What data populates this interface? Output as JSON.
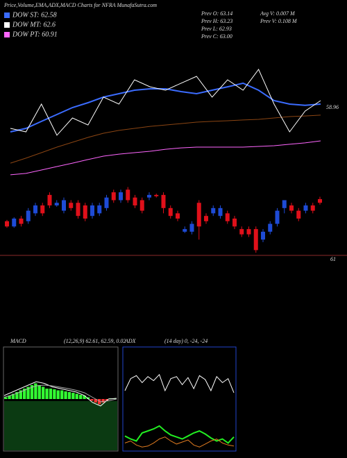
{
  "header": {
    "title": "Price,Volume,EMA,ADX,MACD Charts for NFRA MunafaSutra.com",
    "legend": [
      {
        "label": "DOW ST: 62.58",
        "color": "#3b6cff"
      },
      {
        "label": "DOW MT: 62.6",
        "color": "#ffffff"
      },
      {
        "label": "DOW PT: 60.91",
        "color": "#ff66ff"
      }
    ],
    "stats": [
      "Prev  O: 63.14",
      "Avg V: 0.007 M",
      "Prev  H: 63.23",
      "Prev  V: 0.108 M",
      "Prev  L: 62.93",
      "Prev  C: 63.00"
    ]
  },
  "chart_data": [
    {
      "type": "overlay",
      "ylim": [
        53,
        62
      ],
      "price_label": "58.96",
      "series": [
        {
          "color": "#8b4513",
          "values": [
            54.36,
            54.75,
            55.18,
            55.62,
            56.0,
            56.38,
            56.71,
            56.93,
            57.09,
            57.25,
            57.36,
            57.47,
            57.58,
            57.64,
            57.69,
            57.75,
            57.8,
            57.91,
            58.02,
            58.07,
            58.13
          ]
        },
        {
          "color": "#ff66ff",
          "values": [
            53.44,
            53.55,
            53.82,
            54.09,
            54.36,
            54.64,
            54.91,
            55.07,
            55.18,
            55.29,
            55.45,
            55.56,
            55.62,
            55.62,
            55.62,
            55.62,
            55.67,
            55.73,
            55.84,
            55.95,
            56.11
          ]
        },
        {
          "color": "#3b6cff",
          "values": [
            56.82,
            57.09,
            57.64,
            58.18,
            58.73,
            59.11,
            59.55,
            59.82,
            60.09,
            60.2,
            60.2,
            59.98,
            59.82,
            60.09,
            60.36,
            60.64,
            60.09,
            59.27,
            59.0,
            58.91,
            59.0
          ]
        },
        {
          "color": "#ffffff",
          "values": [
            57.09,
            56.82,
            59.0,
            56.55,
            57.91,
            57.36,
            59.55,
            59.0,
            60.91,
            60.36,
            60.09,
            60.64,
            61.18,
            59.55,
            60.91,
            60.09,
            61.73,
            59.0,
            56.82,
            58.45,
            59.27
          ]
        }
      ]
    },
    {
      "type": "candlestick",
      "ylim": [
        61,
        64.3
      ],
      "axis_label": "61",
      "up_color": "#1e4bd6",
      "down_color": "#e0101a",
      "open": [
        62.3,
        62.1,
        62.4,
        62.3,
        62.6,
        62.9,
        63.3,
        62.9,
        62.7,
        63.0,
        63.0,
        62.9,
        62.5,
        62.6,
        62.8,
        63.4,
        63.1,
        63.5,
        63.2,
        63.1,
        63.2,
        63.3,
        63.3,
        62.8,
        62.6,
        61.9,
        61.9,
        63.0,
        62.5,
        62.6,
        62.5,
        62.6,
        62.4,
        62.0,
        62.0,
        62.0,
        61.6,
        61.9,
        62.2,
        62.8,
        62.9,
        62.7,
        62.7,
        62.9,
        63.14
      ],
      "high": [
        62.35,
        62.45,
        62.5,
        62.8,
        63.0,
        63.0,
        63.4,
        63.1,
        63.2,
        63.1,
        63.1,
        63.0,
        63.0,
        63.0,
        63.3,
        63.5,
        63.5,
        63.6,
        63.3,
        63.2,
        63.4,
        63.35,
        63.4,
        62.9,
        62.7,
        62.1,
        62.3,
        63.1,
        62.6,
        62.9,
        62.9,
        62.7,
        62.5,
        62.1,
        62.1,
        62.1,
        62.0,
        62.3,
        62.8,
        63.1,
        63.0,
        62.8,
        63.0,
        63.0,
        63.23
      ],
      "low": [
        62.05,
        62.05,
        62.1,
        62.2,
        62.5,
        62.5,
        62.8,
        62.85,
        62.6,
        62.7,
        62.4,
        62.3,
        62.4,
        62.5,
        62.7,
        63.0,
        63.0,
        63.0,
        62.8,
        62.6,
        63.1,
        63.2,
        62.6,
        62.4,
        62.3,
        61.85,
        61.8,
        61.6,
        62.2,
        62.5,
        62.4,
        62.2,
        62.0,
        61.7,
        61.7,
        61.1,
        61.5,
        61.8,
        62.1,
        62.6,
        62.6,
        62.3,
        62.6,
        62.6,
        62.93
      ],
      "close": [
        62.1,
        62.4,
        62.2,
        62.7,
        62.9,
        62.6,
        62.9,
        63.0,
        63.1,
        62.8,
        62.5,
        62.4,
        62.9,
        62.9,
        63.2,
        63.1,
        63.4,
        63.1,
        62.9,
        62.7,
        63.3,
        63.25,
        62.8,
        62.5,
        62.4,
        62.0,
        62.2,
        62.1,
        62.3,
        62.8,
        62.8,
        62.3,
        62.1,
        61.8,
        61.8,
        61.2,
        61.9,
        62.2,
        62.7,
        63.1,
        62.7,
        62.4,
        62.9,
        62.7,
        63.0
      ]
    },
    {
      "type": "macd",
      "title": "MACD",
      "subtitle": "(12,26,9) 62.61, 62.59, 0.02",
      "ylim": [
        -1.5,
        1.5
      ],
      "color": "#33ff33",
      "negative_color": "#ff3333",
      "histogram": [
        0.05,
        0.1,
        0.15,
        0.2,
        0.25,
        0.3,
        0.35,
        0.4,
        0.45,
        0.4,
        0.35,
        0.3,
        0.3,
        0.28,
        0.25,
        0.25,
        0.22,
        0.2,
        0.18,
        0.15,
        0.12,
        0.1,
        0.05,
        -0.05,
        -0.1,
        -0.15,
        -0.1,
        -0.05,
        0.02,
        0.02
      ],
      "series": [
        {
          "color": "#ffffff",
          "values": [
            0.1,
            0.2,
            0.3,
            0.4,
            0.5,
            0.45,
            0.35,
            0.3,
            0.25,
            0.2,
            0.1,
            -0.1,
            -0.2,
            0.0,
            0.02
          ]
        },
        {
          "color": "#aaaaaa",
          "values": [
            0.05,
            0.12,
            0.2,
            0.3,
            0.38,
            0.4,
            0.38,
            0.34,
            0.3,
            0.25,
            0.18,
            0.05,
            -0.08,
            -0.05,
            0.0
          ]
        }
      ]
    },
    {
      "type": "adx",
      "title": "ADX",
      "subtitle": "(14 day) 0, -24, -24",
      "ylim": [
        0,
        100
      ],
      "series": [
        {
          "color": "#ffffff",
          "values": [
            60,
            72,
            75,
            68,
            74,
            70,
            76,
            60,
            72,
            74,
            66,
            73,
            62,
            75,
            71,
            60,
            74,
            68,
            72,
            58
          ]
        },
        {
          "color": "#22ee22",
          "values": [
            15,
            12,
            10,
            18,
            20,
            22,
            25,
            20,
            16,
            14,
            12,
            15,
            18,
            20,
            17,
            13,
            10,
            12,
            8,
            14
          ]
        },
        {
          "color": "#e07b20",
          "values": [
            8,
            10,
            6,
            4,
            5,
            8,
            12,
            14,
            10,
            7,
            9,
            11,
            6,
            4,
            7,
            10,
            12,
            8,
            6,
            5
          ]
        }
      ]
    }
  ]
}
